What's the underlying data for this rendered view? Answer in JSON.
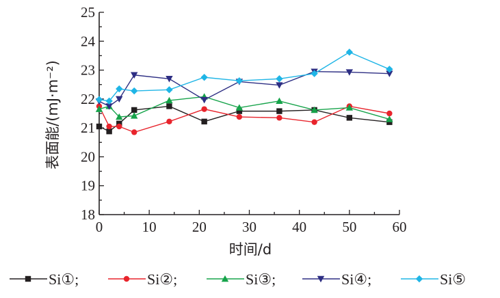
{
  "chart_data": {
    "type": "line",
    "xlabel": "时间/d",
    "ylabel": "表面能/(mJ·m⁻²)",
    "xlim": [
      0,
      60
    ],
    "ylim": [
      18,
      25
    ],
    "x_ticks": [
      "0",
      "10",
      "20",
      "30",
      "40",
      "50",
      "60"
    ],
    "y_ticks": [
      "18",
      "19",
      "20",
      "21",
      "22",
      "23",
      "24",
      "25"
    ],
    "x": [
      0,
      2,
      4,
      7,
      14,
      21,
      28,
      36,
      43,
      50,
      58
    ],
    "series": [
      {
        "name": "Si①",
        "color": "#231f20",
        "marker": "square",
        "values": [
          21.05,
          20.88,
          21.15,
          21.62,
          21.75,
          21.22,
          21.58,
          21.58,
          21.62,
          21.35,
          21.2
        ]
      },
      {
        "name": "Si②",
        "color": "#e8242c",
        "marker": "circle",
        "values": [
          21.75,
          21.05,
          21.05,
          20.85,
          21.22,
          21.65,
          21.38,
          21.35,
          21.2,
          21.75,
          21.5
        ]
      },
      {
        "name": "Si③",
        "color": "#16a34a",
        "marker": "triangle-up",
        "values": [
          21.65,
          21.75,
          21.38,
          21.42,
          21.95,
          22.08,
          21.7,
          21.93,
          21.62,
          21.7,
          21.3
        ]
      },
      {
        "name": "Si④",
        "color": "#2d2e83",
        "marker": "triangle-down",
        "values": [
          21.92,
          21.75,
          22.0,
          22.83,
          22.7,
          21.97,
          22.6,
          22.48,
          22.95,
          22.93,
          22.88
        ]
      },
      {
        "name": "Si⑤",
        "color": "#1fb5e6",
        "marker": "diamond",
        "values": [
          21.98,
          21.93,
          22.35,
          22.28,
          22.32,
          22.75,
          22.63,
          22.7,
          22.88,
          23.62,
          23.03
        ]
      }
    ]
  }
}
